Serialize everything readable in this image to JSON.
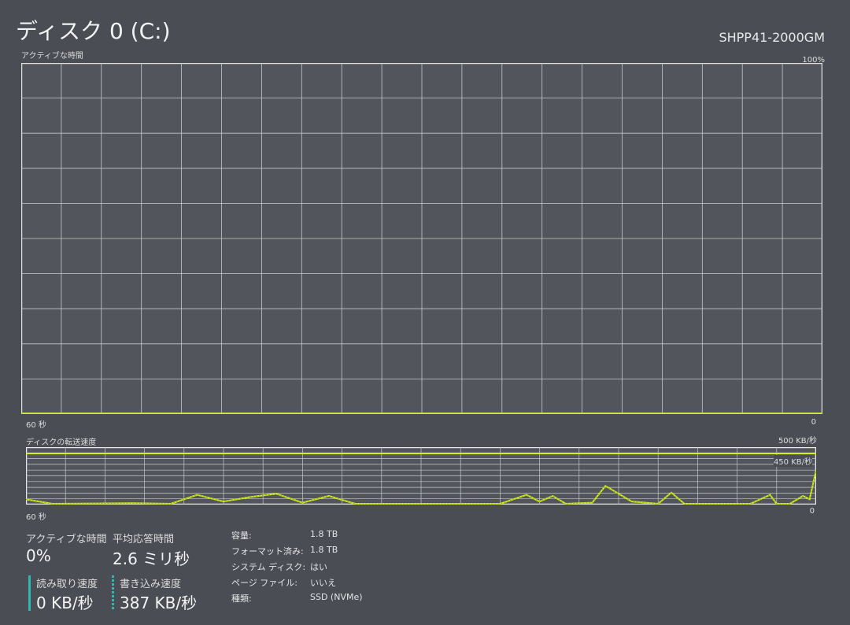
{
  "header": {
    "title": "ディスク 0 (C:)",
    "model": "SHPP41-2000GM"
  },
  "active_chart": {
    "label": "アクティブな時間",
    "max_label": "100%",
    "min_label": "0",
    "time_label": "60 秒"
  },
  "transfer_chart": {
    "label": "ディスクの転送速度",
    "max_label": "500 KB/秒",
    "marker_label": "450 KB/秒",
    "min_label": "0",
    "time_label": "60 秒"
  },
  "chart_data": [
    {
      "type": "line",
      "title": "アクティブな時間",
      "ylim": [
        0,
        100
      ],
      "xlim": [
        60,
        0
      ],
      "series": [
        {
          "values": [
            [
              60,
              0
            ],
            [
              0,
              0
            ]
          ]
        }
      ]
    },
    {
      "type": "line",
      "title": "ディスクの転送速度",
      "ylim": [
        0,
        500
      ],
      "xlim": [
        60,
        0
      ],
      "marker": 450,
      "series": [
        {
          "values": [
            [
              60,
              40
            ],
            [
              58,
              0
            ],
            [
              52,
              5
            ],
            [
              49,
              0
            ],
            [
              47,
              80
            ],
            [
              45,
              20
            ],
            [
              43,
              60
            ],
            [
              41,
              90
            ],
            [
              39,
              10
            ],
            [
              37,
              70
            ],
            [
              35,
              0
            ],
            [
              24,
              0
            ],
            [
              22,
              80
            ],
            [
              21,
              20
            ],
            [
              20,
              70
            ],
            [
              19,
              0
            ],
            [
              17,
              10
            ],
            [
              16,
              160
            ],
            [
              14,
              20
            ],
            [
              12,
              0
            ],
            [
              11,
              100
            ],
            [
              10,
              0
            ],
            [
              5,
              0
            ],
            [
              3.5,
              80
            ],
            [
              3,
              0
            ],
            [
              2,
              0
            ],
            [
              1,
              70
            ],
            [
              0.5,
              40
            ],
            [
              0,
              300
            ]
          ]
        }
      ]
    }
  ],
  "stats": {
    "active_label": "アクティブな時間",
    "active_value": "0%",
    "response_label": "平均応答時間",
    "response_value": "2.6 ミリ秒",
    "read_label": "読み取り速度",
    "read_value": "0 KB/秒",
    "write_label": "書き込み速度",
    "write_value": "387 KB/秒"
  },
  "properties": [
    {
      "key": "容量:",
      "value": "1.8 TB"
    },
    {
      "key": "フォーマット済み:",
      "value": "1.8 TB"
    },
    {
      "key": "システム ディスク:",
      "value": "はい"
    },
    {
      "key": "ページ ファイル:",
      "value": "いいえ"
    },
    {
      "key": "種類:",
      "value": "SSD (NVMe)"
    }
  ],
  "colors": {
    "line": "#d4f01a",
    "grid": "#c8c8c8",
    "read": "#2fb8b0"
  }
}
